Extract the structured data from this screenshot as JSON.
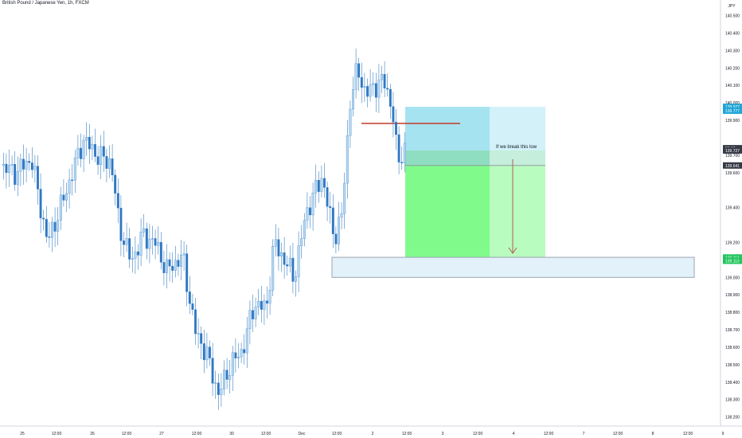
{
  "chart_data": {
    "type": "candlestick",
    "title": "British Pound / Japanese Yen, 1h, FXCM",
    "currency": "JPY",
    "ylim": [
      138.15,
      140.58
    ],
    "y_ticks": [
      138.2,
      138.3,
      138.4,
      138.5,
      138.6,
      138.7,
      138.8,
      138.9,
      139.0,
      139.2,
      139.4,
      139.6,
      139.7,
      139.9,
      140.0,
      140.1,
      140.2,
      140.3,
      140.4,
      140.5
    ],
    "y_tick_labels": [
      "138.200",
      "138.300",
      "138.400",
      "138.500",
      "138.600",
      "138.700",
      "138.800",
      "138.900",
      "139.000",
      "139.200",
      "139.400",
      "139.600",
      "139.700",
      "139.900",
      "140.000",
      "140.100",
      "140.200",
      "140.300",
      "140.400",
      "140.500"
    ],
    "x_tick_labels": [
      "25",
      "12:00",
      "26",
      "12:00",
      "27",
      "12:00",
      "30",
      "12:00",
      "Dec",
      "12:00",
      "2",
      "12:00",
      "3",
      "12:00",
      "4",
      "12:00",
      "7",
      "12:00",
      "8",
      "12:00",
      "9"
    ],
    "price_badges": [
      {
        "label": "139.977",
        "value": 139.977,
        "color": "#1fa5d6"
      },
      {
        "label": "139.777",
        "value": 139.955,
        "color": "#1fa5d6"
      },
      {
        "label": "56:19",
        "value": 139.74,
        "color": "#363a45"
      },
      {
        "label": "139.727",
        "value": 139.727,
        "color": "#363a45"
      },
      {
        "label": "139.641",
        "value": 139.641,
        "color": "#363a45"
      },
      {
        "label": "139.114",
        "value": 139.114,
        "color": "#22c55e"
      },
      {
        "label": "139.113",
        "value": 139.095,
        "color": "#22c55e"
      }
    ],
    "annotation": "If we break this low",
    "up_color": "#b4d7f0",
    "down_color": "#2f78c4"
  }
}
